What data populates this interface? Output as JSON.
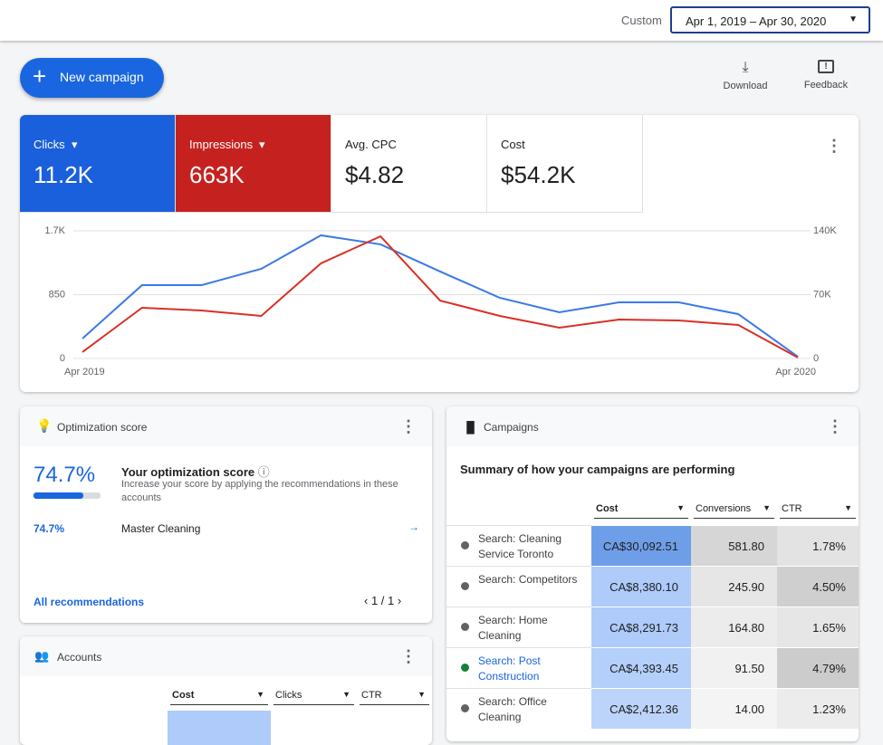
{
  "header": {
    "range_label": "Custom",
    "date_range": "Apr 1, 2019 – Apr 30, 2020"
  },
  "actions": {
    "new_campaign": "New campaign",
    "download": "Download",
    "feedback": "Feedback"
  },
  "metrics": [
    {
      "name": "Clicks",
      "value": "11.2K",
      "color": "#1a5fdc"
    },
    {
      "name": "Impressions",
      "value": "663K",
      "color": "#c5221f"
    },
    {
      "name": "Avg. CPC",
      "value": "$4.82"
    },
    {
      "name": "Cost",
      "value": "$54.2K"
    }
  ],
  "chart_data": {
    "type": "line",
    "categories": [
      "Apr 2019",
      null,
      null,
      null,
      null,
      null,
      null,
      null,
      null,
      null,
      null,
      null,
      "Apr 2020"
    ],
    "series": [
      {
        "name": "Clicks",
        "color": "#3b78e7",
        "values": [
          265,
          977,
          977,
          1194,
          1640,
          1520,
          1158,
          808,
          615,
          748,
          748,
          591,
          24
        ]
      },
      {
        "name": "Impressions",
        "color": "#d93025",
        "axis": "y2",
        "values": [
          7000,
          55600,
          52600,
          46700,
          104300,
          134000,
          63500,
          46700,
          33800,
          42700,
          41700,
          36700,
          1000
        ]
      }
    ],
    "ylim": [
      0,
      1700
    ],
    "yticks": [
      0,
      850,
      {
        "value": 1700,
        "label": "1.7K"
      }
    ],
    "y2lim": [
      0,
      140000
    ],
    "y2ticks": [
      0,
      {
        "value": 70000,
        "label": "70K"
      },
      {
        "value": 140000,
        "label": "140K"
      }
    ],
    "grid": true
  },
  "optimization": {
    "title": "Optimization score",
    "score": {
      "value": 74.7,
      "label": "74.7%"
    },
    "heading": "Your optimization score",
    "description": "Increase your score by applying the recommendations in these accounts",
    "row": {
      "score": "74.7%",
      "account": "Master Cleaning"
    },
    "link": "All recommendations",
    "pager": "1 / 1"
  },
  "campaigns": {
    "title": "Campaigns",
    "subtitle": "Summary of how your campaigns are performing",
    "columns": [
      "Cost",
      "Conversions",
      "CTR"
    ],
    "rows": [
      [
        "Search: Cleaning Service Toronto",
        "CA$30,092.51",
        "581.80",
        "1.78%"
      ],
      [
        "Search: Competitors",
        "CA$8,380.10",
        "245.90",
        "4.50%"
      ],
      [
        "Search: Home Cleaning",
        "CA$8,291.73",
        "164.80",
        "1.65%"
      ],
      [
        "Search: Post Construction",
        "CA$4,393.45",
        "91.50",
        "4.79%"
      ],
      [
        "Search: Office Cleaning",
        "CA$2,412.36",
        "14.00",
        "1.23%"
      ]
    ],
    "dot_colors": [
      "#5f6368",
      "#5f6368",
      "#5f6368",
      "#188038",
      "#5f6368"
    ],
    "shades": [
      [
        "#6f9ee8",
        "#d6d6d6",
        "#e3e3e3"
      ],
      [
        "#aecbfa",
        "#e6e6e6",
        "#cfcfcf"
      ],
      [
        "#aecbfa",
        "#ececec",
        "#e6e6e6"
      ],
      [
        "#b4cffa",
        "#f1f1f1",
        "#cccccc"
      ],
      [
        "#bcd4fa",
        "#f4f4f4",
        "#ececec"
      ]
    ]
  },
  "accounts": {
    "title": "Accounts",
    "columns": [
      "Cost",
      "Clicks",
      "CTR"
    ]
  }
}
